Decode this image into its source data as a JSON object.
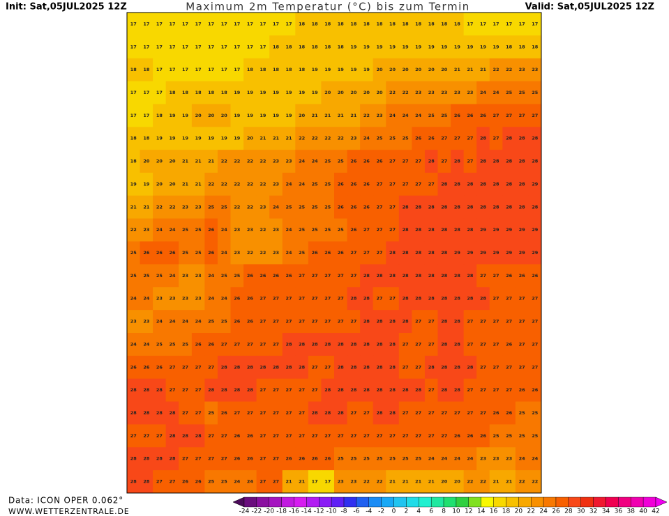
{
  "header": {
    "init": "Init: Sat,05JUL2025 12Z",
    "title": "Maximum 2m Temperatur (°C) bis zum Termin",
    "valid": "Valid: Sat,05JUL2025 12Z"
  },
  "footer": {
    "source": "Data: ICON OPER 0.062°",
    "site": "WWW.WETTERZENTRALE.DE"
  },
  "colorbar": {
    "labels": [
      -24,
      -22,
      -20,
      -18,
      -16,
      -14,
      -12,
      -10,
      -8,
      -6,
      -4,
      -2,
      0,
      2,
      4,
      6,
      8,
      10,
      12,
      14,
      16,
      18,
      20,
      22,
      24,
      26,
      28,
      30,
      32,
      34,
      36,
      38,
      40,
      42
    ],
    "colors": [
      "#4b0a5a",
      "#6a0d7d",
      "#8a10a0",
      "#a514c0",
      "#c11ae0",
      "#d61cf0",
      "#b21cf2",
      "#8a1cf5",
      "#6020f5",
      "#3030f0",
      "#2060f0",
      "#1a8cf5",
      "#18a8f5",
      "#20c4f0",
      "#20dce8",
      "#20f0d0",
      "#20e8a0",
      "#20e070",
      "#30d040",
      "#80e020",
      "#f8f800",
      "#f8d800",
      "#f8c000",
      "#f8a800",
      "#f89000",
      "#f87800",
      "#f86000",
      "#f84818",
      "#f03010",
      "#f01830",
      "#f00050",
      "#f00080",
      "#f000b0",
      "#f000d8",
      "#f000f0"
    ]
  },
  "map": {
    "grid": [
      [
        17,
        17,
        17,
        17,
        17,
        17,
        17,
        17,
        17,
        17,
        17,
        17,
        17,
        18,
        18,
        18,
        18,
        18,
        18,
        18,
        18,
        18,
        18,
        18,
        18,
        18,
        17,
        17,
        17,
        17,
        17,
        17
      ],
      [
        17,
        17,
        17,
        17,
        17,
        17,
        17,
        17,
        17,
        17,
        17,
        18,
        18,
        18,
        18,
        18,
        18,
        19,
        19,
        19,
        19,
        19,
        19,
        19,
        19,
        19,
        19,
        19,
        19,
        18,
        18,
        18
      ],
      [
        18,
        18,
        17,
        17,
        17,
        17,
        17,
        17,
        17,
        18,
        18,
        18,
        18,
        18,
        19,
        19,
        19,
        19,
        19,
        20,
        20,
        20,
        20,
        20,
        20,
        21,
        21,
        21,
        22,
        22,
        23,
        23
      ],
      [
        17,
        17,
        17,
        18,
        18,
        18,
        18,
        18,
        19,
        19,
        19,
        19,
        19,
        19,
        19,
        20,
        20,
        20,
        20,
        20,
        22,
        22,
        23,
        23,
        23,
        23,
        23,
        24,
        24,
        25,
        25,
        25
      ],
      [
        17,
        17,
        18,
        19,
        19,
        20,
        20,
        20,
        19,
        19,
        19,
        19,
        19,
        20,
        21,
        21,
        21,
        21,
        22,
        23,
        24,
        24,
        24,
        25,
        25,
        26,
        26,
        26,
        27,
        27,
        27,
        27
      ],
      [
        18,
        18,
        19,
        19,
        19,
        19,
        19,
        19,
        19,
        20,
        21,
        21,
        21,
        22,
        22,
        22,
        22,
        23,
        24,
        25,
        25,
        25,
        26,
        26,
        27,
        27,
        27,
        28,
        27,
        28,
        28,
        28
      ],
      [
        18,
        20,
        20,
        20,
        21,
        21,
        21,
        22,
        22,
        22,
        22,
        23,
        23,
        24,
        24,
        25,
        25,
        26,
        26,
        26,
        27,
        27,
        27,
        28,
        27,
        28,
        27,
        28,
        28,
        28,
        28,
        28
      ],
      [
        19,
        19,
        20,
        20,
        21,
        21,
        22,
        22,
        22,
        22,
        22,
        23,
        24,
        24,
        25,
        25,
        26,
        26,
        26,
        27,
        27,
        27,
        27,
        27,
        28,
        28,
        28,
        28,
        28,
        28,
        28,
        29
      ],
      [
        21,
        21,
        22,
        22,
        23,
        23,
        25,
        25,
        22,
        22,
        23,
        24,
        25,
        25,
        25,
        25,
        26,
        26,
        26,
        27,
        27,
        28,
        28,
        28,
        28,
        28,
        28,
        28,
        28,
        28,
        28,
        28
      ],
      [
        22,
        23,
        24,
        24,
        25,
        25,
        26,
        24,
        23,
        23,
        22,
        23,
        24,
        25,
        25,
        25,
        25,
        26,
        27,
        27,
        27,
        28,
        28,
        28,
        28,
        28,
        28,
        29,
        29,
        29,
        29,
        29
      ],
      [
        25,
        26,
        26,
        26,
        25,
        25,
        26,
        24,
        23,
        22,
        22,
        23,
        24,
        25,
        26,
        26,
        26,
        27,
        27,
        27,
        28,
        28,
        28,
        28,
        28,
        29,
        29,
        29,
        29,
        29,
        29,
        29
      ],
      [
        25,
        25,
        25,
        24,
        23,
        23,
        24,
        25,
        25,
        26,
        26,
        26,
        26,
        27,
        27,
        27,
        27,
        27,
        28,
        28,
        28,
        28,
        28,
        28,
        28,
        28,
        28,
        27,
        27,
        26,
        26,
        26
      ],
      [
        24,
        24,
        23,
        23,
        23,
        23,
        24,
        24,
        26,
        26,
        27,
        27,
        27,
        27,
        27,
        27,
        27,
        28,
        28,
        27,
        27,
        28,
        28,
        28,
        28,
        28,
        28,
        28,
        27,
        27,
        27,
        27
      ],
      [
        23,
        23,
        24,
        24,
        24,
        24,
        25,
        25,
        26,
        26,
        27,
        27,
        27,
        27,
        27,
        27,
        27,
        27,
        28,
        28,
        28,
        28,
        27,
        27,
        28,
        28,
        27,
        27,
        27,
        27,
        27,
        27
      ],
      [
        24,
        24,
        25,
        25,
        25,
        26,
        26,
        27,
        27,
        27,
        27,
        27,
        28,
        28,
        28,
        28,
        28,
        28,
        28,
        28,
        28,
        27,
        27,
        27,
        28,
        28,
        27,
        27,
        27,
        26,
        27,
        27
      ],
      [
        26,
        26,
        26,
        27,
        27,
        27,
        27,
        28,
        28,
        28,
        28,
        28,
        28,
        28,
        27,
        27,
        28,
        28,
        28,
        28,
        28,
        27,
        27,
        28,
        28,
        28,
        28,
        27,
        27,
        27,
        27,
        27
      ],
      [
        28,
        28,
        28,
        27,
        27,
        27,
        28,
        28,
        28,
        28,
        27,
        27,
        27,
        27,
        27,
        28,
        28,
        28,
        28,
        28,
        28,
        28,
        28,
        27,
        28,
        28,
        27,
        27,
        27,
        27,
        26,
        26
      ],
      [
        28,
        28,
        28,
        28,
        27,
        27,
        25,
        26,
        27,
        27,
        27,
        27,
        27,
        27,
        28,
        28,
        28,
        27,
        27,
        28,
        28,
        27,
        27,
        27,
        27,
        27,
        27,
        27,
        26,
        26,
        25,
        25
      ],
      [
        27,
        27,
        27,
        28,
        28,
        28,
        27,
        27,
        26,
        26,
        27,
        27,
        27,
        27,
        27,
        27,
        27,
        27,
        27,
        27,
        27,
        27,
        27,
        27,
        27,
        26,
        26,
        26,
        25,
        25,
        25,
        25
      ],
      [
        28,
        28,
        28,
        28,
        27,
        27,
        27,
        27,
        26,
        26,
        27,
        27,
        26,
        26,
        26,
        26,
        25,
        25,
        25,
        25,
        25,
        25,
        25,
        24,
        24,
        24,
        24,
        23,
        23,
        23,
        24,
        24
      ],
      [
        28,
        28,
        27,
        27,
        26,
        26,
        25,
        25,
        24,
        24,
        27,
        27,
        21,
        21,
        17,
        17,
        23,
        23,
        22,
        22,
        21,
        21,
        21,
        21,
        20,
        20,
        22,
        22,
        21,
        21,
        22,
        22
      ]
    ]
  }
}
